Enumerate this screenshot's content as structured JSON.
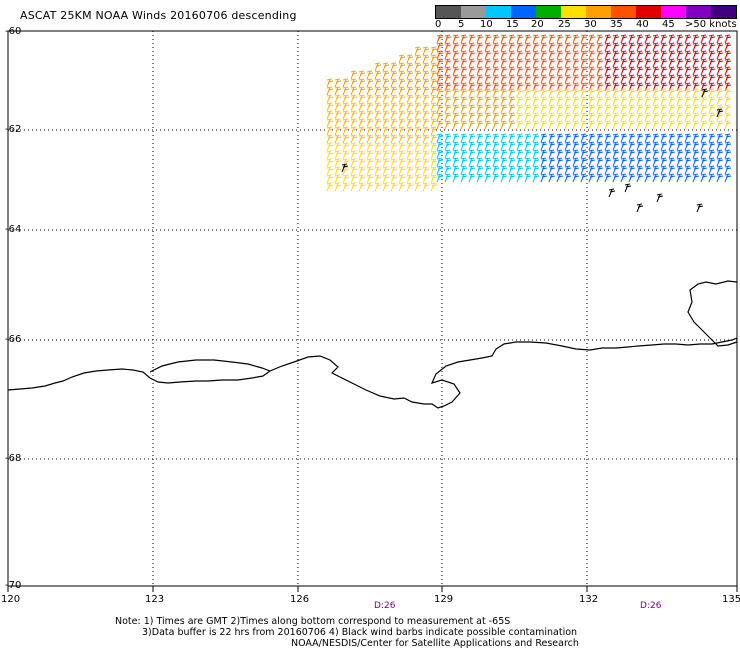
{
  "title": "ASCAT 25KM NOAA Winds 20160706 descending",
  "scale": {
    "labels": [
      "0",
      "5",
      "10",
      "15",
      "20",
      "25",
      "30",
      "35",
      "40",
      "45",
      ">50 knots"
    ],
    "colors": [
      "#555555",
      "#9a9a9a",
      "#00c8ff",
      "#0064ff",
      "#00b000",
      "#ffe000",
      "#ffa000",
      "#ff5000",
      "#e00000",
      "#ff00ff",
      "#8000c0",
      "#400080"
    ]
  },
  "axes": {
    "lat_labels": [
      "-60",
      "-62",
      "-64",
      "-66",
      "-68",
      "-70"
    ],
    "lon_labels": [
      "120",
      "123",
      "126",
      "129",
      "132",
      "135"
    ]
  },
  "time_labels": [
    "D:26",
    "D:26"
  ],
  "notes": {
    "line1": "Note: 1) Times are GMT 2)Times along bottom correspond to measurement at -65S",
    "line2": "3)Data buffer is 22 hrs from 20160706 4) Black wind barbs indicate possible contamination",
    "line3": "NOAA/NESDIS/Center for Satellite Applications and Research"
  }
}
